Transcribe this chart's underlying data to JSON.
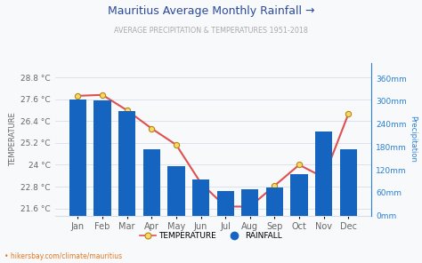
{
  "title": "Mauritius Average Monthly Rainfall →",
  "subtitle": "AVERAGE PRECIPITATION & TEMPERATURES 1951-2018",
  "months": [
    "Jan",
    "Feb",
    "Mar",
    "Apr",
    "May",
    "Jun",
    "Jul",
    "Aug",
    "Sep",
    "Oct",
    "Nov",
    "Dec"
  ],
  "rainfall_mm": [
    305,
    302,
    275,
    175,
    130,
    95,
    65,
    70,
    75,
    110,
    220,
    175
  ],
  "temperature_c": [
    27.8,
    27.85,
    27.0,
    26.0,
    25.1,
    23.0,
    21.7,
    21.7,
    22.85,
    24.0,
    23.3,
    26.8
  ],
  "bar_color": "#1565c0",
  "line_color": "#e05050",
  "marker_face_color": "#f5d76e",
  "marker_edge_color": "#b8860b",
  "temp_ylim": [
    21.2,
    29.6
  ],
  "rain_ylim": [
    0,
    400
  ],
  "temp_ticks": [
    21.6,
    22.8,
    24.0,
    25.2,
    26.4,
    27.6,
    28.8
  ],
  "rain_ticks": [
    0,
    60,
    120,
    180,
    240,
    300,
    360
  ],
  "temp_tick_labels": [
    "21.6 °C",
    "22.8 °C",
    "24 °C",
    "25.2 °C",
    "26.4 °C",
    "27.6 °C",
    "28.8 °C"
  ],
  "rain_tick_labels": [
    "0mm",
    "60mm",
    "120mm",
    "180mm",
    "240mm",
    "300mm",
    "360mm"
  ],
  "ylabel_left": "TEMPERATURE",
  "ylabel_right": "Precipitation",
  "bg_color": "#f8f9fb",
  "grid_color": "#d8dde8",
  "title_color": "#2a4a9a",
  "subtitle_color": "#aaaaaa",
  "axis_color": "#666666",
  "right_axis_color": "#2a7fd4",
  "watermark": "• hikersbay.com/climate/mauritius",
  "watermark_color": "#e07820",
  "legend_temp": "TEMPERATURE",
  "legend_rain": "RAINFALL"
}
